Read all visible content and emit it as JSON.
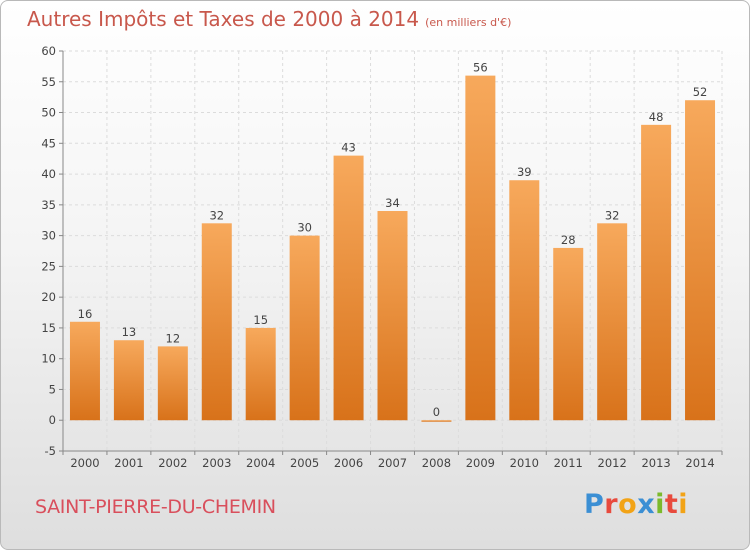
{
  "chart_data": {
    "type": "bar",
    "title": "Autres Impôts et Taxes de 2000 à 2014",
    "unit_note": "(en milliers d'€)",
    "categories": [
      "2000",
      "2001",
      "2002",
      "2003",
      "2004",
      "2005",
      "2006",
      "2007",
      "2008",
      "2009",
      "2010",
      "2011",
      "2012",
      "2013",
      "2014"
    ],
    "values": [
      16,
      13,
      12,
      32,
      15,
      30,
      43,
      34,
      0,
      56,
      39,
      28,
      32,
      48,
      52
    ],
    "ylim": [
      -5,
      60
    ],
    "yticks": [
      -5,
      0,
      5,
      10,
      15,
      20,
      25,
      30,
      35,
      40,
      45,
      50,
      55,
      60
    ],
    "grid": true,
    "bar_color": "#f08a2c",
    "bar_color_light": "#f7a95c",
    "bar_color_dark": "#d8721a"
  },
  "commune": "SAINT-PIERRE-DU-CHEMIN",
  "logo": {
    "letters": [
      {
        "ch": "P",
        "color": "#3b8fd4"
      },
      {
        "ch": "r",
        "color": "#e84a3d"
      },
      {
        "ch": "o",
        "color": "#f2a316"
      },
      {
        "ch": "x",
        "color": "#3b8fd4"
      },
      {
        "ch": "i",
        "color": "#7cba2c"
      },
      {
        "ch": "t",
        "color": "#e84a3d"
      },
      {
        "ch": "i",
        "color": "#f2a316"
      }
    ]
  }
}
